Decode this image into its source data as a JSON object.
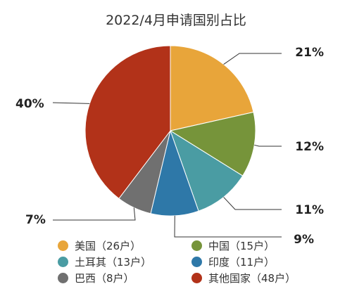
{
  "chart_data": {
    "type": "pie",
    "title": "2022/4月申请国别占比",
    "slices": [
      {
        "legend": "美国（26户）",
        "value": 26,
        "percent_label": "21%",
        "color": "#E8A53A"
      },
      {
        "legend": "中国（15户）",
        "value": 15,
        "percent_label": "12%",
        "color": "#76943A"
      },
      {
        "legend": "土耳其（13户）",
        "value": 13,
        "percent_label": "11%",
        "color": "#4A9CA3"
      },
      {
        "legend": "印度（11户）",
        "value": 11,
        "percent_label": "9%",
        "color": "#2E78A8"
      },
      {
        "legend": "巴西（8户）",
        "value": 8,
        "percent_label": "7%",
        "color": "#707070"
      },
      {
        "legend": "其他国家（48户）",
        "value": 48,
        "percent_label": "40%",
        "color": "#B23219"
      }
    ],
    "legend_placement": "bottom"
  }
}
